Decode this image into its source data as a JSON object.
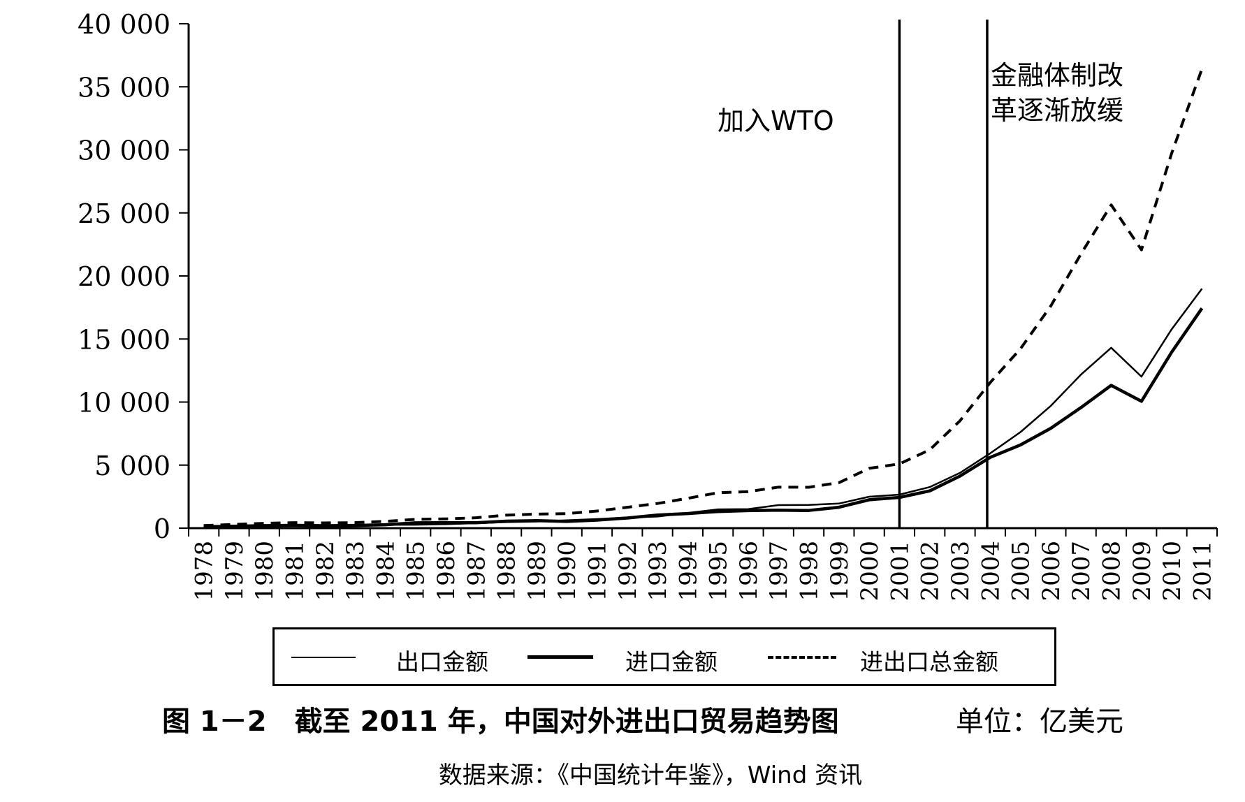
{
  "chart_data": {
    "type": "line",
    "x": [
      "1978",
      "1979",
      "1980",
      "1981",
      "1982",
      "1983",
      "1984",
      "1985",
      "1986",
      "1987",
      "1988",
      "1989",
      "1990",
      "1991",
      "1992",
      "1993",
      "1994",
      "1995",
      "1996",
      "1997",
      "1998",
      "1999",
      "2000",
      "2001",
      "2002",
      "2003",
      "2004",
      "2005",
      "2006",
      "2007",
      "2008",
      "2009",
      "2010",
      "2011"
    ],
    "series": [
      {
        "name": "出口金额",
        "style": "thin-solid",
        "values": [
          98,
          137,
          181,
          220,
          223,
          222,
          261,
          274,
          309,
          394,
          475,
          525,
          621,
          719,
          849,
          917,
          1210,
          1488,
          1511,
          1828,
          1837,
          1949,
          2492,
          2661,
          3256,
          4382,
          5933,
          7620,
          9690,
          12178,
          14307,
          12016,
          15778,
          18984
        ]
      },
      {
        "name": "进口金额",
        "style": "thick-solid",
        "values": [
          109,
          157,
          200,
          220,
          193,
          214,
          274,
          423,
          429,
          432,
          553,
          591,
          534,
          638,
          806,
          1040,
          1156,
          1321,
          1388,
          1424,
          1402,
          1657,
          2251,
          2436,
          2952,
          4128,
          5614,
          6600,
          7915,
          9560,
          11326,
          10059,
          13962,
          17435
        ]
      },
      {
        "name": "进出口总金额",
        "style": "dashed",
        "values": [
          207,
          294,
          381,
          440,
          416,
          436,
          535,
          697,
          738,
          826,
          1028,
          1116,
          1155,
          1357,
          1656,
          1957,
          2366,
          2809,
          2899,
          3252,
          3239,
          3606,
          4743,
          5097,
          6208,
          8510,
          11546,
          14219,
          17604,
          21737,
          25633,
          22072,
          29740,
          36419
        ]
      }
    ],
    "y_ticks": [
      "0",
      "5 000",
      "10 000",
      "15 000",
      "20 000",
      "25 000",
      "30 000",
      "35 000",
      "40 000"
    ],
    "ylim": [
      0,
      40000
    ],
    "vlines": [
      {
        "at": "2001",
        "label": "加入WTO"
      },
      {
        "at": "2003.9",
        "label_line1": "金融体制改",
        "label_line2": "革逐渐放缓"
      }
    ],
    "legend_position": "bottom",
    "grid": false
  },
  "caption": {
    "figure": "图 1－2　截至 2011 年，中国对外进出口贸易趋势图",
    "unit": "单位：亿美元"
  },
  "source": "数据来源：《中国统计年鉴》，Wind 资讯"
}
